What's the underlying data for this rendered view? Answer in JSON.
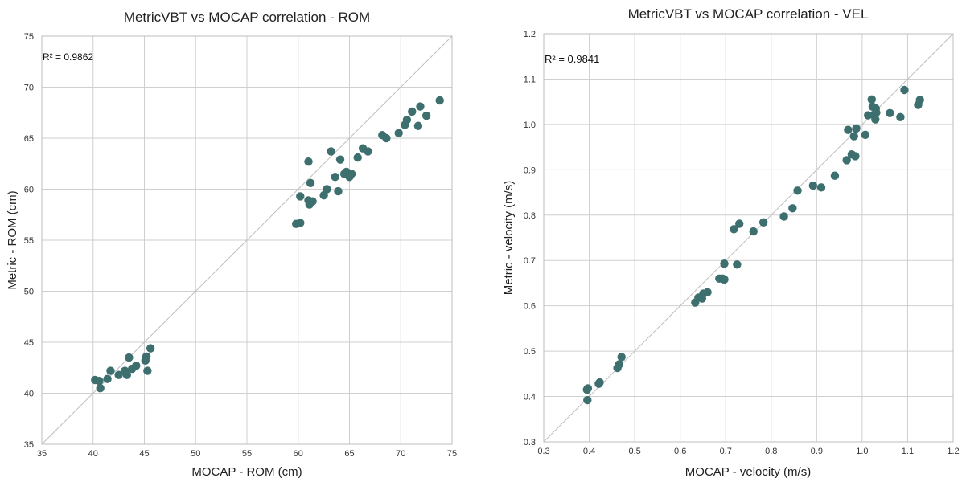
{
  "chart_data": [
    {
      "type": "scatter",
      "title": "MetricVBT vs MOCAP correlation - ROM",
      "xlabel": "MOCAP - ROM (cm)",
      "ylabel": "Metric - ROM (cm)",
      "xlim": [
        35,
        75
      ],
      "ylim": [
        35,
        75
      ],
      "xticks": [
        35,
        40,
        45,
        50,
        55,
        60,
        65,
        70,
        75
      ],
      "yticks": [
        35,
        40,
        45,
        50,
        55,
        60,
        65,
        70,
        75
      ],
      "tick_labels_x": [
        "35",
        "40",
        "45",
        "50",
        "55",
        "60",
        "65",
        "70",
        "75"
      ],
      "tick_labels_y": [
        "35",
        "40",
        "45",
        "50",
        "55",
        "60",
        "65",
        "70",
        "75"
      ],
      "annotation": "R² = 0.9862",
      "identity_line": true,
      "marker_color": "#3d6f6f",
      "series": [
        {
          "name": "ROM",
          "points": [
            [
              40.2,
              41.3
            ],
            [
              40.6,
              41.2
            ],
            [
              40.7,
              40.5
            ],
            [
              41.4,
              41.4
            ],
            [
              41.7,
              42.2
            ],
            [
              42.5,
              41.8
            ],
            [
              43.1,
              42.2
            ],
            [
              43.3,
              41.8
            ],
            [
              43.5,
              43.5
            ],
            [
              43.8,
              42.4
            ],
            [
              44.2,
              42.7
            ],
            [
              45.1,
              43.2
            ],
            [
              45.2,
              43.6
            ],
            [
              45.3,
              42.2
            ],
            [
              45.6,
              44.4
            ],
            [
              59.8,
              56.6
            ],
            [
              60.2,
              56.7
            ],
            [
              60.2,
              59.3
            ],
            [
              61.0,
              62.7
            ],
            [
              61.0,
              58.9
            ],
            [
              61.1,
              58.5
            ],
            [
              61.2,
              60.6
            ],
            [
              61.4,
              58.8
            ],
            [
              62.5,
              59.4
            ],
            [
              62.8,
              60.0
            ],
            [
              63.2,
              63.7
            ],
            [
              63.6,
              61.2
            ],
            [
              63.9,
              59.8
            ],
            [
              64.1,
              62.9
            ],
            [
              64.5,
              61.5
            ],
            [
              64.7,
              61.7
            ],
            [
              65.0,
              61.2
            ],
            [
              65.2,
              61.5
            ],
            [
              65.8,
              63.1
            ],
            [
              66.3,
              64.0
            ],
            [
              66.8,
              63.7
            ],
            [
              68.2,
              65.3
            ],
            [
              68.6,
              65.0
            ],
            [
              69.8,
              65.5
            ],
            [
              70.4,
              66.3
            ],
            [
              70.6,
              66.8
            ],
            [
              71.1,
              67.6
            ],
            [
              71.7,
              66.2
            ],
            [
              71.9,
              68.1
            ],
            [
              72.5,
              67.2
            ],
            [
              73.8,
              68.7
            ]
          ]
        }
      ]
    },
    {
      "type": "scatter",
      "title": "MetricVBT vs MOCAP correlation - VEL",
      "xlabel": "MOCAP - velocity (m/s)",
      "ylabel": "Metric - velocity (m/s)",
      "xlim": [
        0.3,
        1.2
      ],
      "ylim": [
        0.3,
        1.2
      ],
      "xticks": [
        0.3,
        0.4,
        0.5,
        0.6,
        0.7,
        0.8,
        0.9,
        1.0,
        1.1,
        1.2
      ],
      "yticks": [
        0.3,
        0.4,
        0.5,
        0.6,
        0.7,
        0.8,
        0.9,
        1.0,
        1.1,
        1.2
      ],
      "tick_labels_x": [
        "0.3",
        "0.4",
        "0.5",
        "0.6",
        "0.7",
        "0.8",
        "0.9",
        "1.0",
        "1.1",
        "1.2"
      ],
      "tick_labels_y": [
        "0.3",
        "0.4",
        "0.5",
        "0.6",
        "0.7",
        "0.8",
        "0.9",
        "1.0",
        "1.1",
        "1.2"
      ],
      "annotation": "R² = 0.9841",
      "identity_line": true,
      "marker_color": "#3d6f6f",
      "series": [
        {
          "name": "VEL",
          "points": [
            [
              0.395,
              0.415
            ],
            [
              0.397,
              0.418
            ],
            [
              0.396,
              0.392
            ],
            [
              0.421,
              0.428
            ],
            [
              0.423,
              0.431
            ],
            [
              0.462,
              0.463
            ],
            [
              0.466,
              0.471
            ],
            [
              0.471,
              0.487
            ],
            [
              0.633,
              0.607
            ],
            [
              0.64,
              0.618
            ],
            [
              0.648,
              0.616
            ],
            [
              0.651,
              0.627
            ],
            [
              0.66,
              0.63
            ],
            [
              0.686,
              0.66
            ],
            [
              0.693,
              0.66
            ],
            [
              0.697,
              0.658
            ],
            [
              0.697,
              0.693
            ],
            [
              0.725,
              0.691
            ],
            [
              0.718,
              0.769
            ],
            [
              0.73,
              0.781
            ],
            [
              0.761,
              0.764
            ],
            [
              0.783,
              0.784
            ],
            [
              0.828,
              0.797
            ],
            [
              0.847,
              0.815
            ],
            [
              0.858,
              0.854
            ],
            [
              0.892,
              0.865
            ],
            [
              0.91,
              0.861
            ],
            [
              0.94,
              0.887
            ],
            [
              0.966,
              0.921
            ],
            [
              0.969,
              0.988
            ],
            [
              0.977,
              0.934
            ],
            [
              0.982,
              0.974
            ],
            [
              0.985,
              0.93
            ],
            [
              0.987,
              0.991
            ],
            [
              1.007,
              0.977
            ],
            [
              1.013,
              1.02
            ],
            [
              1.021,
              1.055
            ],
            [
              1.023,
              1.039
            ],
            [
              1.025,
              1.021
            ],
            [
              1.029,
              1.011
            ],
            [
              1.03,
              1.035
            ],
            [
              1.031,
              1.026
            ],
            [
              1.061,
              1.025
            ],
            [
              1.084,
              1.016
            ],
            [
              1.093,
              1.076
            ],
            [
              1.123,
              1.043
            ],
            [
              1.127,
              1.054
            ]
          ]
        }
      ]
    }
  ]
}
